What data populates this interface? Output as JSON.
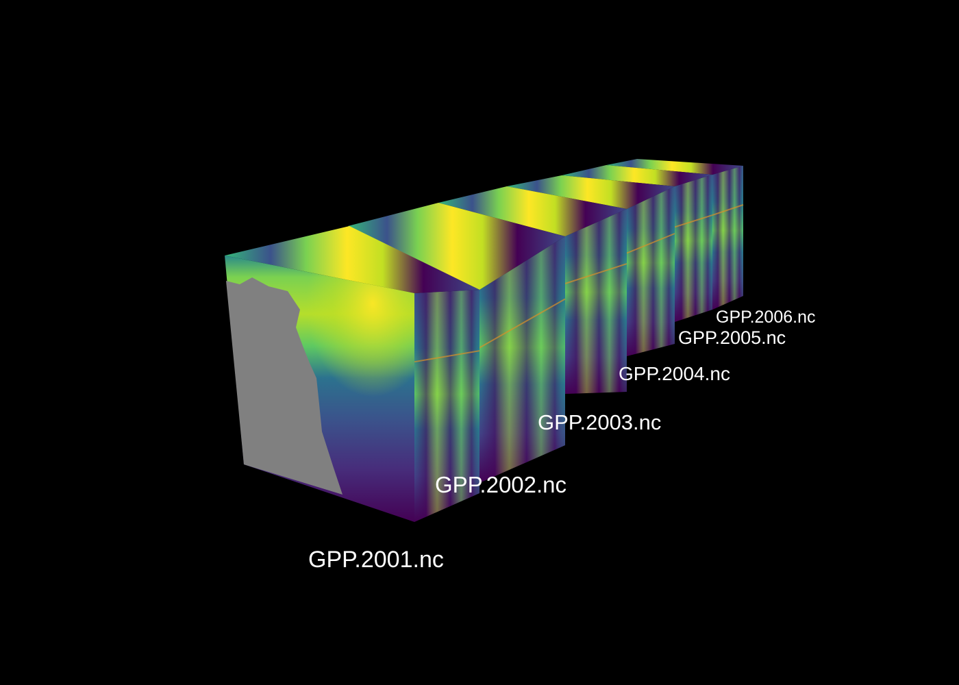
{
  "cubes": [
    {
      "file": "GPP.2001.nc"
    },
    {
      "file": "GPP.2002.nc"
    },
    {
      "file": "GPP.2003.nc"
    },
    {
      "file": "GPP.2004.nc"
    },
    {
      "file": "GPP.2005.nc"
    },
    {
      "file": "GPP.2006.nc"
    }
  ],
  "colormap": "viridis",
  "colors": {
    "background": "#000000",
    "label": "#ffffff",
    "nodata": "#808080",
    "viridis_low": "#440154",
    "viridis_mid": "#21918c",
    "viridis_high": "#fde725"
  }
}
